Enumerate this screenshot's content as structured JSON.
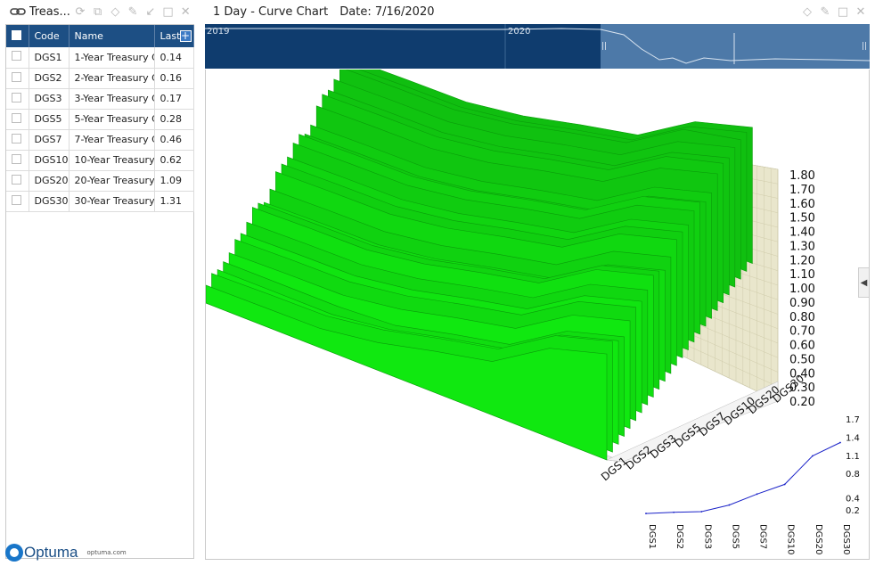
{
  "left_panel": {
    "title": "Treas...",
    "icons": [
      "link-icon",
      "refresh-icon",
      "copy-icon",
      "diamond-icon",
      "pin-icon",
      "arrow-icon",
      "maximize-icon",
      "close-icon"
    ],
    "columns": [
      "Code",
      "Name",
      "Last"
    ],
    "rows": [
      {
        "code": "DGS1",
        "name": "1-Year Treasury C",
        "last": "0.14"
      },
      {
        "code": "DGS2",
        "name": "2-Year Treasury C",
        "last": "0.16"
      },
      {
        "code": "DGS3",
        "name": "3-Year Treasury C",
        "last": "0.17"
      },
      {
        "code": "DGS5",
        "name": "5-Year Treasury C",
        "last": "0.28"
      },
      {
        "code": "DGS7",
        "name": "7-Year Treasury C",
        "last": "0.46"
      },
      {
        "code": "DGS10",
        "name": "10-Year Treasury",
        "last": "0.62"
      },
      {
        "code": "DGS20",
        "name": "20-Year Treasury",
        "last": "1.09"
      },
      {
        "code": "DGS30",
        "name": "30-Year Treasury",
        "last": "1.31"
      }
    ],
    "logo_text": "Optuma",
    "logo_url": "optuma.com"
  },
  "right_panel": {
    "title": "1 Day - Curve Chart",
    "date_label": "Date: 7/16/2020",
    "icons": [
      "diamond-icon",
      "pin-icon",
      "maximize-icon",
      "close-icon"
    ],
    "overview_labels": [
      "2019",
      "2020"
    ],
    "colors": {
      "overview_dark": "#0f3c6e",
      "overview_light": "#4d79a8",
      "surface": "#10e010",
      "wall": "#e9e6cc",
      "curve_line": "#1a22c8"
    }
  },
  "chart_data": [
    {
      "type": "area",
      "title": "",
      "categories": [
        "DGS1",
        "DGS2",
        "DGS3",
        "DGS5",
        "DGS7",
        "DGS10",
        "DGS20",
        "DGS30"
      ],
      "yticks": [
        "1.80",
        "1.70",
        "1.60",
        "1.50",
        "1.40",
        "1.30",
        "1.20",
        "1.10",
        "1.00",
        "0.90",
        "0.80",
        "0.70",
        "0.60",
        "0.50",
        "0.40",
        "0.30",
        "0.20"
      ],
      "ylim": [
        0.2,
        1.8
      ]
    },
    {
      "type": "line",
      "title": "",
      "categories": [
        "DGS1",
        "DGS2",
        "DGS3",
        "DGS5",
        "DGS7",
        "DGS10",
        "DGS20",
        "DGS30"
      ],
      "values": [
        0.14,
        0.16,
        0.17,
        0.28,
        0.46,
        0.62,
        1.09,
        1.31
      ],
      "yticks": [
        "1.7",
        "1.4",
        "1.1",
        "0.8",
        "0.4",
        "0.2"
      ],
      "ylim": [
        0.2,
        1.7
      ]
    }
  ]
}
